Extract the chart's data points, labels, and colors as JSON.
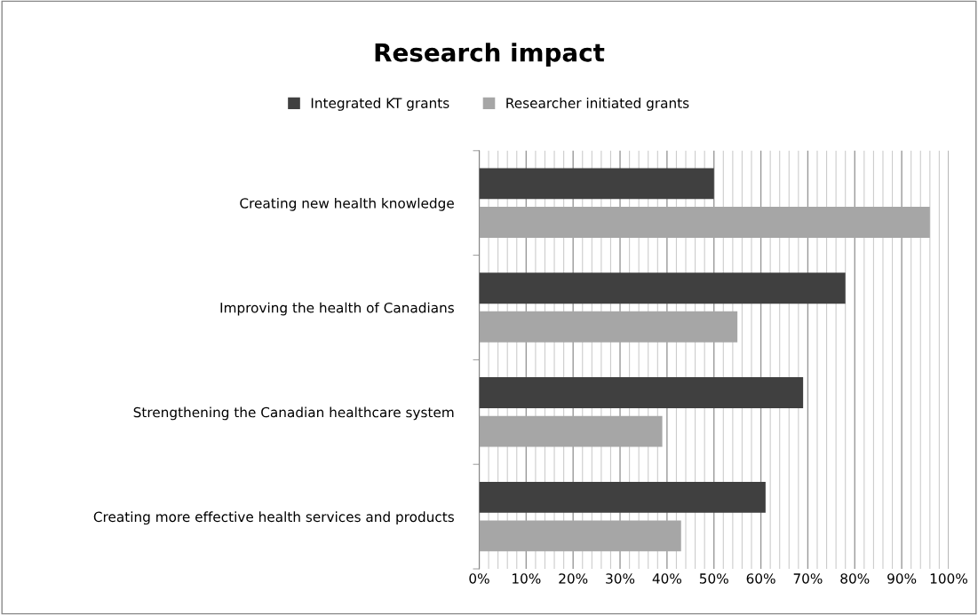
{
  "chart_data": {
    "type": "bar",
    "orientation": "horizontal",
    "title": "Research impact",
    "categories": [
      "Creating new health knowledge",
      "Improving the health of Canadians",
      "Strengthening the Canadian healthcare system",
      "Creating more effective health services and products"
    ],
    "series": [
      {
        "name": "Integrated KT grants",
        "color": "#404040",
        "values": [
          50,
          78,
          69,
          61
        ]
      },
      {
        "name": "Researcher initiated grants",
        "color": "#a6a6a6",
        "values": [
          96,
          55,
          39,
          43
        ]
      }
    ],
    "xlim": [
      0,
      100
    ],
    "xticks": [
      {
        "value": 0,
        "label": "0%"
      },
      {
        "value": 10,
        "label": "10%"
      },
      {
        "value": 20,
        "label": "20%"
      },
      {
        "value": 30,
        "label": "30%"
      },
      {
        "value": 40,
        "label": "40%"
      },
      {
        "value": 50,
        "label": "50%"
      },
      {
        "value": 60,
        "label": "60%"
      },
      {
        "value": 70,
        "label": "70%"
      },
      {
        "value": 80,
        "label": "80%"
      },
      {
        "value": 90,
        "label": "90%"
      },
      {
        "value": 100,
        "label": "100%"
      }
    ],
    "grid": "x",
    "legend": "top"
  }
}
